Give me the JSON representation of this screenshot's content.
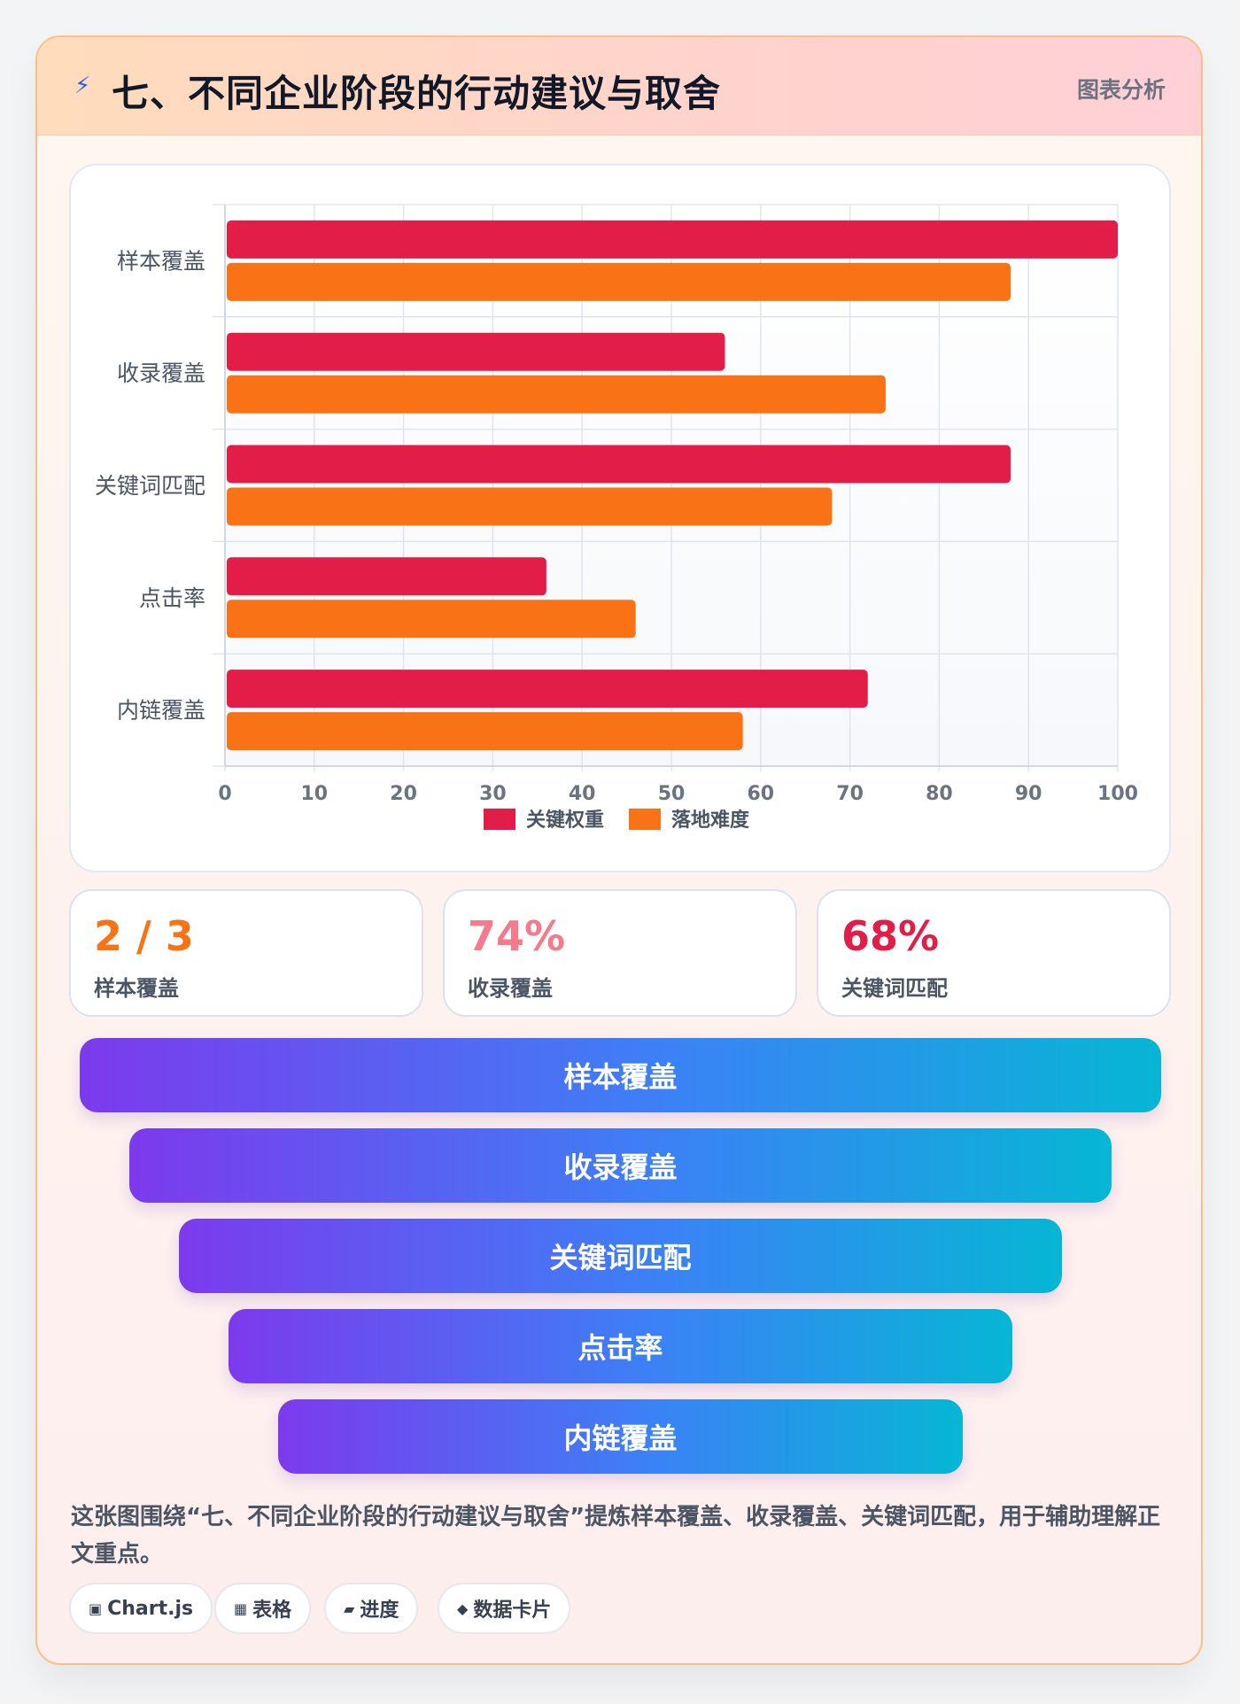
{
  "header": {
    "icon": "lightning-icon",
    "title": "七、不同企业阶段的行动建议与取舍",
    "tag": "图表分析"
  },
  "chart_data": {
    "type": "bar",
    "orientation": "horizontal",
    "categories": [
      "样本覆盖",
      "收录覆盖",
      "关键词匹配",
      "点击率",
      "内链覆盖"
    ],
    "series": [
      {
        "name": "关键权重",
        "color": "#e11d48",
        "values": [
          100,
          56,
          88,
          36,
          72
        ]
      },
      {
        "name": "落地难度",
        "color": "#f97316",
        "values": [
          88,
          74,
          68,
          46,
          58
        ]
      }
    ],
    "xlim": [
      0,
      100
    ],
    "xticks": [
      0,
      10,
      20,
      30,
      40,
      50,
      60,
      70,
      80,
      90,
      100
    ],
    "grid": true,
    "legend_position": "bottom"
  },
  "stats": [
    {
      "value": "2 / 3",
      "label": "样本覆盖",
      "color": "#f97316"
    },
    {
      "value": "74%",
      "label": "收录覆盖",
      "color": "#f47a8c"
    },
    {
      "value": "68%",
      "label": "关键词匹配",
      "color": "#e11d48"
    }
  ],
  "funnel": [
    "样本覆盖",
    "收录覆盖",
    "关键词匹配",
    "点击率",
    "内链覆盖"
  ],
  "description": "这张图围绕“七、不同企业阶段的行动建议与取舍”提炼样本覆盖、收录覆盖、关键词匹配，用于辅助理解正文重点。",
  "pills": [
    {
      "icon": "chart-icon",
      "glyph": "▣",
      "label": "Chart.js"
    },
    {
      "icon": "table-icon",
      "glyph": "▦",
      "label": "表格"
    },
    {
      "icon": "progress-icon",
      "glyph": "▰",
      "label": "进度"
    },
    {
      "icon": "diamond-icon",
      "glyph": "◆",
      "label": "数据卡片"
    }
  ]
}
